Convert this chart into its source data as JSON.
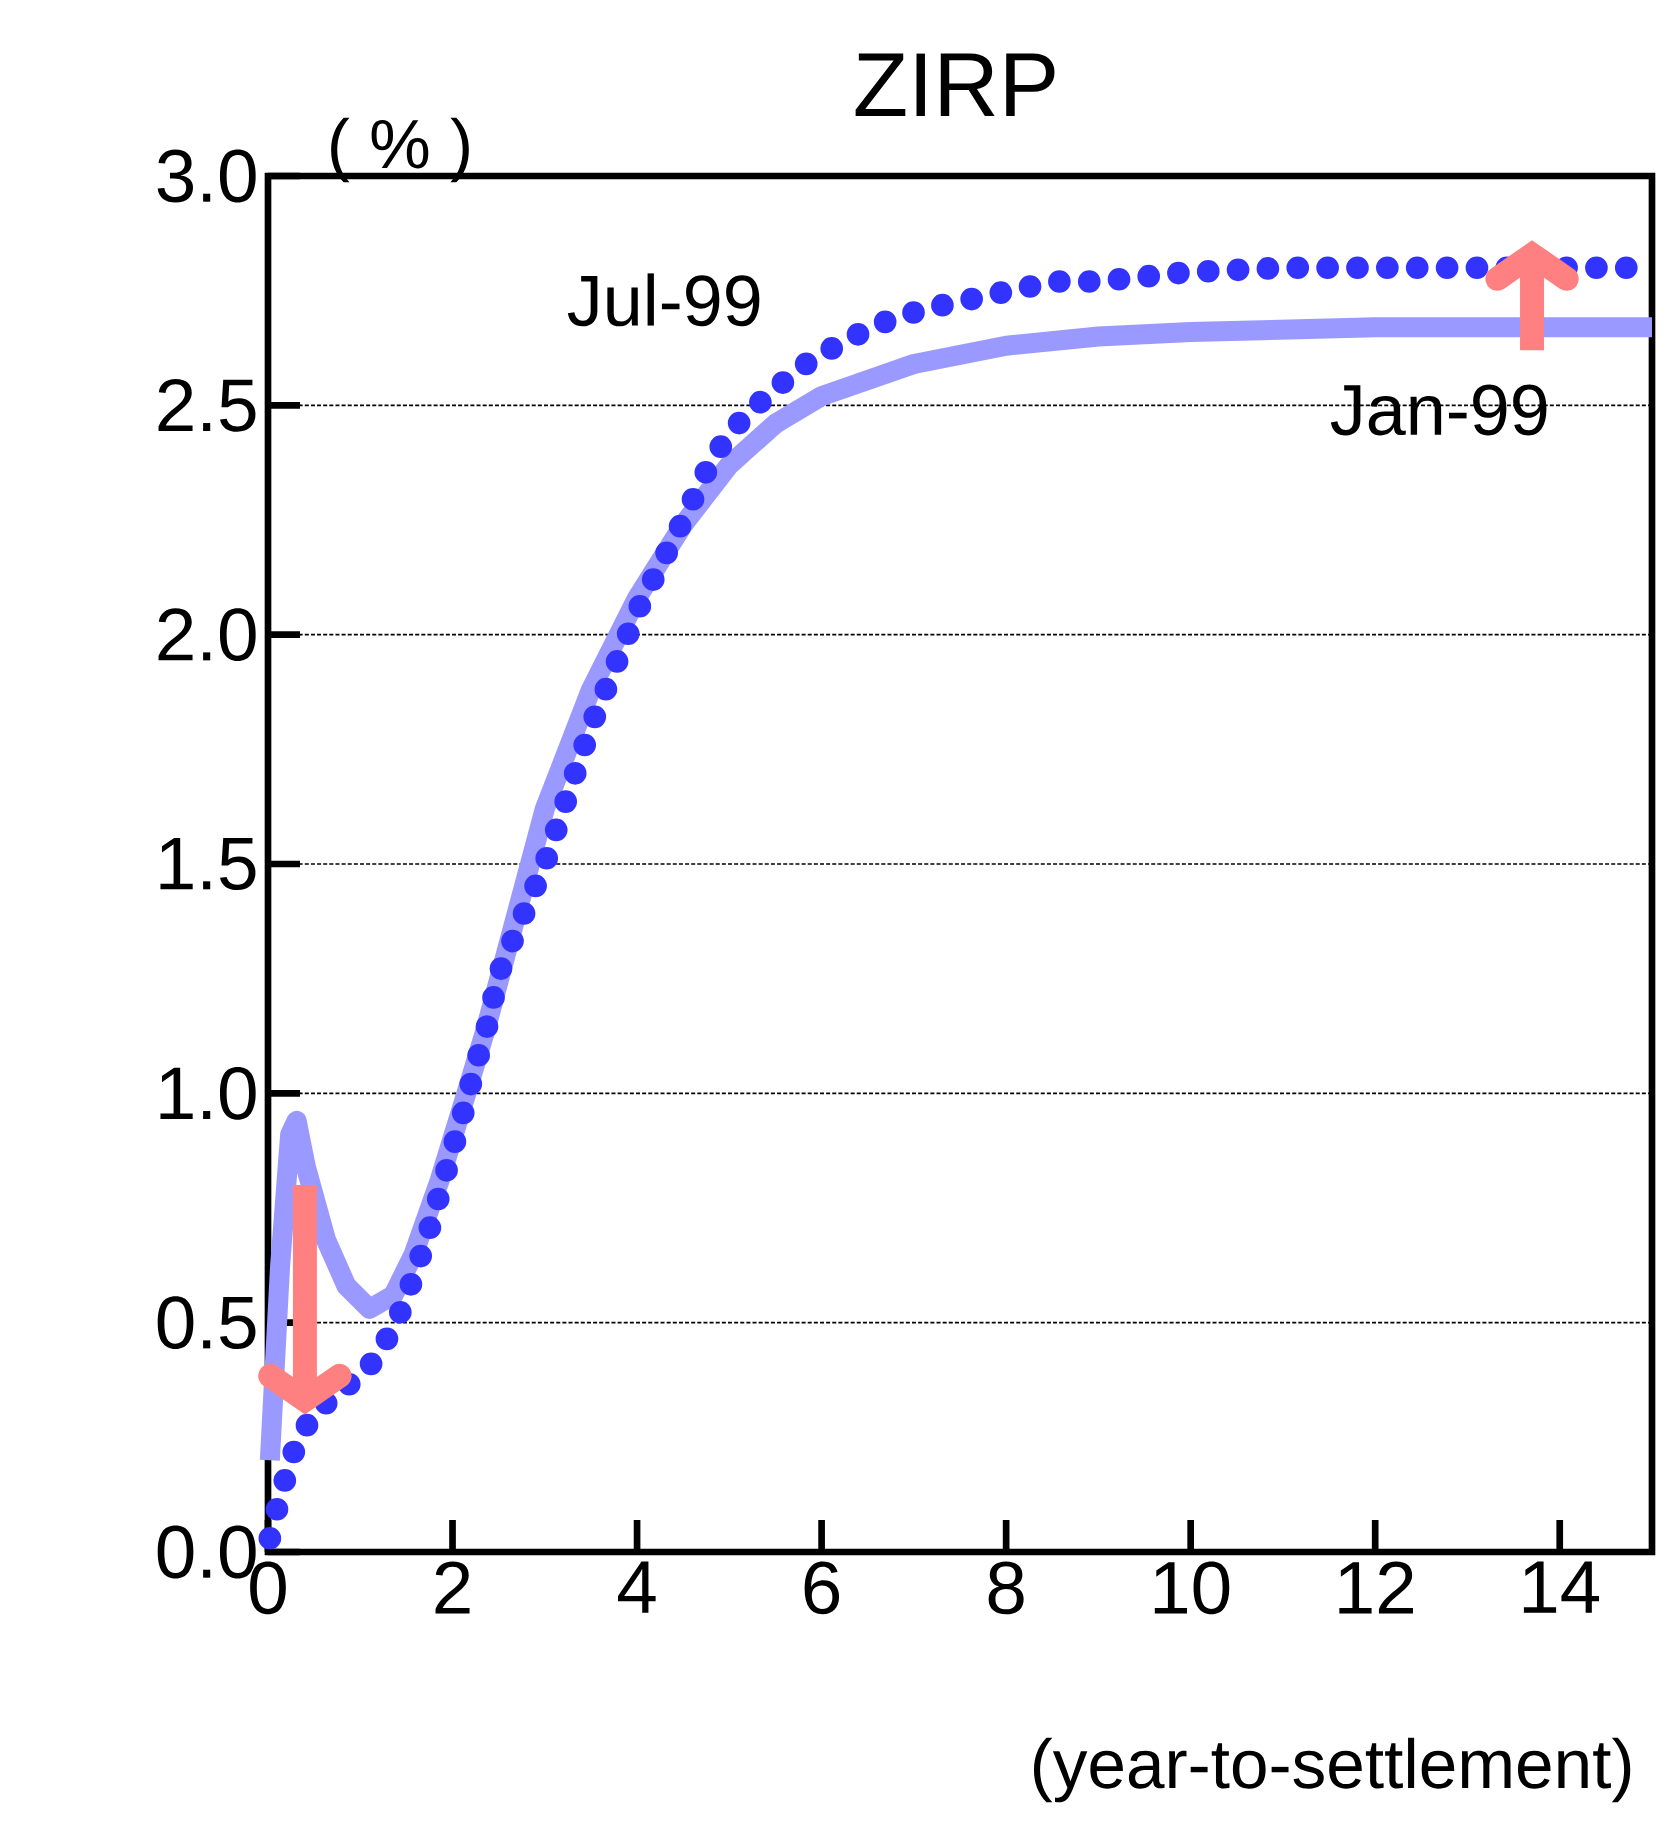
{
  "chart_data": {
    "type": "line",
    "title": "ZIRP",
    "xlabel": "(year-to-settlement)",
    "ylabel": "( % )",
    "xlim": [
      0,
      15
    ],
    "ylim": [
      0,
      3.0
    ],
    "xticks": [
      0,
      2,
      4,
      6,
      8,
      10,
      12,
      14
    ],
    "yticks": [
      {
        "value": 0,
        "label": "0.0"
      },
      {
        "value": 0.5,
        "label": "0.5"
      },
      {
        "value": 1.0,
        "label": "1.0"
      },
      {
        "value": 1.5,
        "label": "1.5"
      },
      {
        "value": 2.0,
        "label": "2.0"
      },
      {
        "value": 2.5,
        "label": "2.5"
      },
      {
        "value": 3.0,
        "label": "3.0"
      }
    ],
    "grid": "y",
    "legend": false,
    "series": [
      {
        "name": "Jan-99",
        "color": "#9999ff",
        "line_style": "solid",
        "x": [
          0.02,
          0.13,
          0.24,
          0.31,
          0.41,
          0.63,
          0.85,
          1.1,
          1.36,
          1.58,
          1.86,
          2.15,
          2.36,
          3,
          3.5,
          4,
          4.5,
          5,
          5.5,
          6,
          7,
          8,
          9,
          10,
          12,
          15
        ],
        "values": [
          0.2,
          0.62,
          0.91,
          0.94,
          0.84,
          0.68,
          0.58,
          0.53,
          0.56,
          0.65,
          0.81,
          1.0,
          1.14,
          1.62,
          1.88,
          2.08,
          2.24,
          2.37,
          2.46,
          2.52,
          2.59,
          2.63,
          2.65,
          2.66,
          2.67,
          2.67
        ]
      },
      {
        "name": "Jul-99",
        "color": "#3333ff",
        "line_style": "dotted",
        "x": [
          0.02,
          0.13,
          0.26,
          0.48,
          0.85,
          1.17,
          1.41,
          1.58,
          1.73,
          1.86,
          1.99,
          2.12,
          2.25,
          2.38,
          2.5,
          3,
          3.5,
          4,
          4.5,
          4.83,
          5.14,
          5.46,
          5.83,
          6.24,
          6.66,
          7.11,
          7.59,
          8.04,
          8.52,
          8.99,
          9.47,
          9.95,
          11,
          12,
          13,
          14,
          15
        ],
        "values": [
          0.03,
          0.12,
          0.21,
          0.3,
          0.36,
          0.42,
          0.51,
          0.6,
          0.69,
          0.78,
          0.87,
          0.96,
          1.06,
          1.15,
          1.26,
          1.5,
          1.8,
          2.05,
          2.25,
          2.39,
          2.47,
          2.53,
          2.59,
          2.64,
          2.68,
          2.71,
          2.73,
          2.75,
          2.77,
          2.77,
          2.78,
          2.79,
          2.8,
          2.8,
          2.8,
          2.8,
          2.8
        ]
      }
    ]
  }
}
